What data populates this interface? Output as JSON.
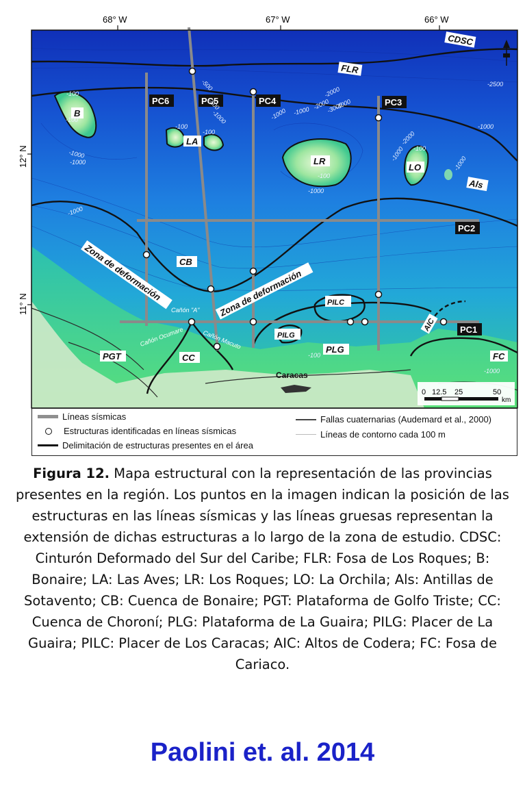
{
  "map": {
    "longitude_ticks": [
      "68° W",
      "67° W",
      "66° W"
    ],
    "latitude_ticks": [
      "12° N",
      "11° N"
    ],
    "labels": {
      "cdsc": "CDSC",
      "flr": "FLR",
      "b": "B",
      "la": "LA",
      "lr": "LR",
      "lo": "LO",
      "als": "Als",
      "cb": "CB",
      "pgt": "PGT",
      "cc": "CC",
      "plg": "PLG",
      "pilg": "PILG",
      "pilc": "PILC",
      "aic": "AIC",
      "fc": "FC",
      "caracas": "Caracas",
      "zona1": "Zona de deformación",
      "zona2": "Zona de deformación",
      "canon_a": "Cañón \"A\"",
      "canon_ocumare": "Cañón Ocumare",
      "canon_macuto": "Cañón Macuto"
    },
    "seismic_lines": [
      "PC6",
      "PC5",
      "PC4",
      "PC3",
      "PC2",
      "PC1"
    ],
    "contour_labels": [
      "-500",
      "-500",
      "-1000",
      "-2000",
      "-3000",
      "-2000",
      "-3000",
      "-1000",
      "-1000",
      "-1000",
      "-100",
      "-100",
      "-100",
      "-100",
      "-100",
      "-100",
      "-1000",
      "-1000",
      "-1000",
      "-1000",
      "-100",
      "-1000",
      "-1000",
      "-2000",
      "-1000",
      "-2500"
    ],
    "scale_bar": {
      "ticks": [
        "0",
        "12.5",
        "25",
        "50"
      ],
      "unit": "km"
    }
  },
  "legend": {
    "seismic_lines": "Líneas sísmicas",
    "structures_identified": "Estructuras identificadas en líneas sísmicas",
    "delimitation": "Delimitación de estructuras presentes en el área",
    "faults": "Fallas cuaternarias (Audemard et al., 2000)",
    "contours": "Líneas de contorno cada 100 m"
  },
  "caption": {
    "figure_label": "Figura 12.",
    "text": "Mapa estructural con la representación de las provincias presentes en la región. Los puntos en la imagen indican la posición de las estructuras en las líneas sísmicas y las líneas gruesas representan la extensión de dichas estructuras a lo largo de la zona de estudio. CDSC: Cinturón Deformado del Sur del Caribe; FLR: Fosa de Los Roques; B: Bonaire; LA: Las Aves; LR: Los Roques; LO: La Orchila; Als: Antillas de Sotavento; CB: Cuenca de Bonaire; PGT: Plataforma de Golfo Triste; CC: Cuenca de Choroní; PLG: Plataforma de La Guaira; PILG: Placer de La Guaira; PILC: Placer de Los Caracas; AIC: Altos de Codera; FC: Fosa de Cariaco."
  },
  "credit": "Paolini et. al. 2014",
  "colors": {
    "deep": "#1438c8",
    "mid": "#1e8fe0",
    "shallow": "#3fd088",
    "land": "#d4ead0",
    "credit": "#1a22c8"
  }
}
